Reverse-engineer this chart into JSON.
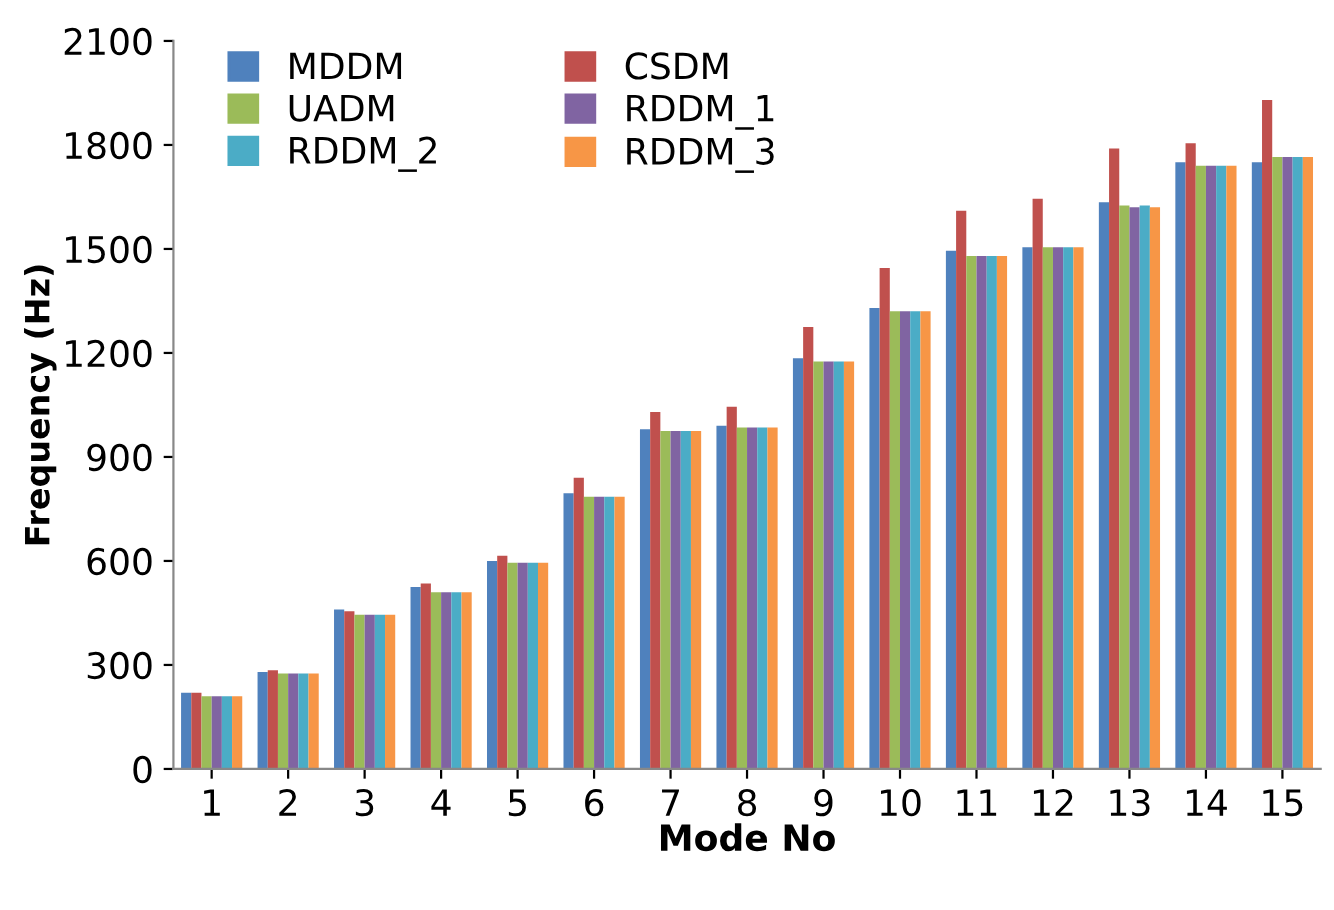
{
  "chart_data": {
    "type": "bar",
    "xlabel": "Mode No",
    "ylabel": "Frequency (Hz)",
    "categories": [
      "1",
      "2",
      "3",
      "4",
      "5",
      "6",
      "7",
      "8",
      "9",
      "10",
      "11",
      "12",
      "13",
      "14",
      "15"
    ],
    "ylim": [
      0,
      2100
    ],
    "yticks": [
      0,
      300,
      600,
      900,
      1200,
      1500,
      1800,
      2100
    ],
    "grid": false,
    "legend": "top left",
    "series": [
      {
        "name": "MDDM",
        "color": "#4f81bd",
        "values": [
          220,
          280,
          460,
          525,
          600,
          795,
          980,
          990,
          1185,
          1330,
          1495,
          1505,
          1635,
          1750,
          1750
        ]
      },
      {
        "name": "CSDM",
        "color": "#c0504d",
        "values": [
          220,
          285,
          455,
          535,
          615,
          840,
          1030,
          1045,
          1275,
          1445,
          1610,
          1645,
          1790,
          1805,
          1930
        ]
      },
      {
        "name": "UADM",
        "color": "#9bbb59",
        "values": [
          210,
          275,
          445,
          510,
          595,
          785,
          975,
          985,
          1175,
          1320,
          1480,
          1505,
          1625,
          1740,
          1765
        ]
      },
      {
        "name": "RDDM_1",
        "color": "#8064a2",
        "values": [
          210,
          275,
          445,
          510,
          595,
          785,
          975,
          985,
          1175,
          1320,
          1480,
          1505,
          1620,
          1740,
          1765
        ]
      },
      {
        "name": "RDDM_2",
        "color": "#4bacc6",
        "values": [
          210,
          275,
          445,
          510,
          595,
          785,
          975,
          985,
          1175,
          1320,
          1480,
          1505,
          1625,
          1740,
          1765
        ]
      },
      {
        "name": "RDDM_3",
        "color": "#f79646",
        "values": [
          210,
          275,
          445,
          510,
          595,
          785,
          975,
          985,
          1175,
          1320,
          1480,
          1505,
          1620,
          1740,
          1765
        ]
      }
    ]
  }
}
